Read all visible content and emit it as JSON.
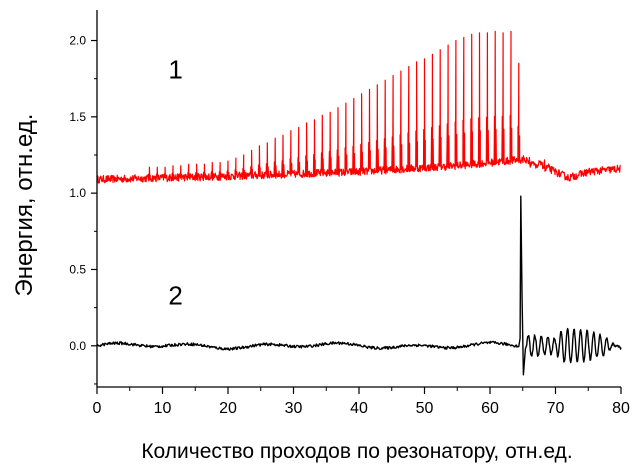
{
  "chart_data": {
    "type": "line",
    "title": "",
    "xlabel": "Количество проходов по резонатору, отн.ед.",
    "ylabel": "Энергия, отн.ед.",
    "xlim": [
      0,
      80
    ],
    "ylim": [
      -0.27,
      2.2
    ],
    "x_ticks": [
      "0",
      "10",
      "20",
      "30",
      "40",
      "50",
      "60",
      "70",
      "80"
    ],
    "y_ticks": [
      "0.0",
      "0.5",
      "1.0",
      "1.5",
      "2.0"
    ],
    "grid": false,
    "legend": "none",
    "annotations": [
      {
        "text": "1",
        "x": 12,
        "y": 1.75
      },
      {
        "text": "2",
        "x": 12,
        "y": 0.27
      }
    ],
    "series": [
      {
        "color": "#ff0000",
        "baseline": [
          [
            0,
            1.09
          ],
          [
            20,
            1.11
          ],
          [
            40,
            1.14
          ],
          [
            55,
            1.18
          ],
          [
            65,
            1.22
          ],
          [
            68,
            1.18
          ],
          [
            72,
            1.1
          ],
          [
            75,
            1.14
          ],
          [
            80,
            1.16
          ]
        ],
        "peaks": [
          [
            8,
            1.17
          ],
          [
            9.2,
            1.17
          ],
          [
            10.4,
            1.17
          ],
          [
            11.6,
            1.18
          ],
          [
            12.8,
            1.18
          ],
          [
            14,
            1.19
          ],
          [
            15.2,
            1.19
          ],
          [
            16.4,
            1.19
          ],
          [
            17.6,
            1.2
          ],
          [
            18.8,
            1.2
          ],
          [
            20,
            1.21
          ],
          [
            21.2,
            1.23
          ],
          [
            22.4,
            1.25
          ],
          [
            23.6,
            1.28
          ],
          [
            24.8,
            1.31
          ],
          [
            26,
            1.33
          ],
          [
            27.2,
            1.36
          ],
          [
            28.4,
            1.38
          ],
          [
            29.6,
            1.41
          ],
          [
            30.8,
            1.43
          ],
          [
            32,
            1.46
          ],
          [
            33.2,
            1.48
          ],
          [
            34.4,
            1.51
          ],
          [
            35.6,
            1.53
          ],
          [
            36.8,
            1.56
          ],
          [
            38,
            1.59
          ],
          [
            39.2,
            1.62
          ],
          [
            40.4,
            1.65
          ],
          [
            41.6,
            1.68
          ],
          [
            42.8,
            1.71
          ],
          [
            44,
            1.74
          ],
          [
            45.2,
            1.77
          ],
          [
            46.4,
            1.8
          ],
          [
            47.6,
            1.83
          ],
          [
            48.8,
            1.86
          ],
          [
            50,
            1.88
          ],
          [
            51.2,
            1.91
          ],
          [
            52.4,
            1.94
          ],
          [
            53.6,
            1.97
          ],
          [
            54.8,
            2.0
          ],
          [
            56,
            2.02
          ],
          [
            57.2,
            2.04
          ],
          [
            58.4,
            2.05
          ],
          [
            59.6,
            2.05
          ],
          [
            60.8,
            2.06
          ],
          [
            62,
            2.05
          ],
          [
            63.2,
            2.06
          ],
          [
            64.4,
            1.85
          ]
        ]
      },
      {
        "color": "#000000",
        "baseline": [
          [
            0,
            0
          ],
          [
            64.5,
            0
          ]
        ],
        "spike": [
          [
            64.7,
            0.98
          ],
          [
            65.1,
            -0.19
          ]
        ],
        "oscillation": [
          [
            66,
            0.07
          ],
          [
            70,
            0.05
          ],
          [
            71,
            0.11
          ],
          [
            74,
            0.11
          ],
          [
            77,
            0.07
          ],
          [
            80,
            -0.02
          ]
        ]
      }
    ]
  }
}
